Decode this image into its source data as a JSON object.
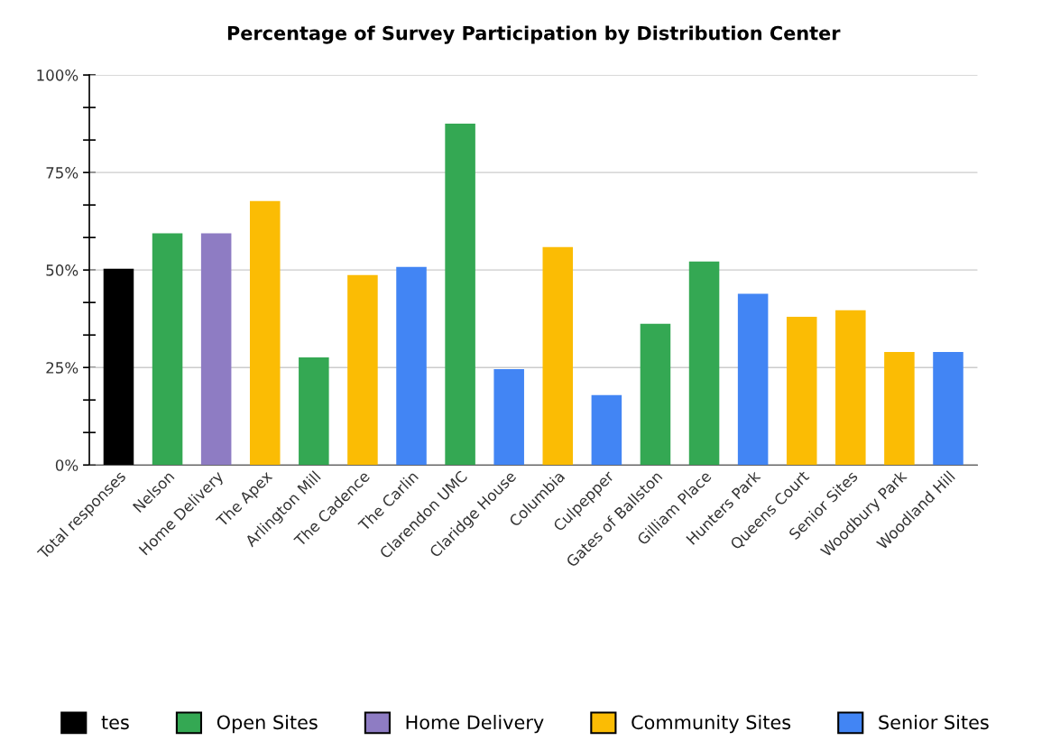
{
  "chart_data": {
    "type": "bar",
    "title": "Percentage of Survey Participation by Distribution Center",
    "categories": [
      "Total responses",
      "Nelson",
      "Home Delivery",
      "The Apex",
      "Arlington Mill",
      "The Cadence",
      "The Carlin",
      "Clarendon UMC",
      "Claridge House",
      "Columbia",
      "Culpepper",
      "Gates of Ballston",
      "Gilliam Place",
      "Hunters Park",
      "Queens Court",
      "Senior Sites",
      "Woodbury Park",
      "Woodland Hill"
    ],
    "series": [
      {
        "name": "tes",
        "color": "#000000",
        "values": [
          50.3,
          null,
          null,
          null,
          null,
          null,
          null,
          null,
          null,
          null,
          null,
          null,
          null,
          null,
          null,
          null,
          null,
          null
        ]
      },
      {
        "name": "Open Sites",
        "color": "#34a853",
        "values": [
          null,
          59.4,
          null,
          null,
          27.6,
          null,
          null,
          87.5,
          null,
          null,
          null,
          36.2,
          52.2,
          null,
          null,
          null,
          null,
          null
        ]
      },
      {
        "name": "Home Delivery",
        "color": "#8e7cc3",
        "values": [
          null,
          null,
          59.4,
          null,
          null,
          null,
          null,
          null,
          null,
          null,
          null,
          null,
          null,
          null,
          null,
          null,
          null,
          null
        ]
      },
      {
        "name": "Community Sites",
        "color": "#fbbc04",
        "values": [
          null,
          null,
          null,
          67.7,
          null,
          48.7,
          null,
          null,
          null,
          55.9,
          null,
          null,
          null,
          null,
          38.0,
          39.7,
          29.0,
          null
        ]
      },
      {
        "name": "Senior Sites",
        "color": "#4285f4",
        "values": [
          null,
          null,
          null,
          null,
          null,
          null,
          50.8,
          null,
          24.6,
          null,
          17.9,
          null,
          null,
          43.9,
          null,
          null,
          null,
          29.0
        ]
      }
    ],
    "ylim": [
      0,
      100
    ],
    "yticks": [
      {
        "value": 0,
        "label": "0%"
      },
      {
        "value": 8.33,
        "label": null
      },
      {
        "value": 16.67,
        "label": null
      },
      {
        "value": 25,
        "label": "25%"
      },
      {
        "value": 33.33,
        "label": null
      },
      {
        "value": 41.67,
        "label": null
      },
      {
        "value": 50,
        "label": "50%"
      },
      {
        "value": 58.33,
        "label": null
      },
      {
        "value": 66.67,
        "label": null
      },
      {
        "value": 75,
        "label": "75%"
      },
      {
        "value": 83.33,
        "label": null
      },
      {
        "value": 91.67,
        "label": null
      },
      {
        "value": 100,
        "label": "100%"
      }
    ],
    "grid": "y",
    "legend": "bottom"
  }
}
